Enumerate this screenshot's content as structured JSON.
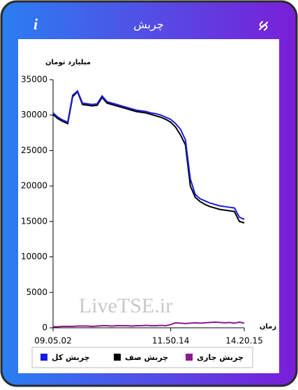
{
  "header": {
    "title": "چربش",
    "info": "i"
  },
  "chart_data": {
    "type": "line",
    "y_label": "میلیارد تومان",
    "x_label": "زمان",
    "watermark": "LiveTSE.ir",
    "categories": [
      "09.05.02",
      null,
      null,
      null,
      null,
      null,
      null,
      null,
      null,
      null,
      null,
      null,
      null,
      null,
      null,
      null,
      null,
      null,
      null,
      null,
      null,
      null,
      null,
      null,
      "11.50.14",
      null,
      null,
      null,
      null,
      null,
      null,
      null,
      null,
      null,
      null,
      null,
      null,
      null,
      null,
      "14.20.15"
    ],
    "series": [
      {
        "name": "چربش کل",
        "color": "#1a1adf",
        "values": [
          30300,
          29700,
          29300,
          29000,
          32800,
          33400,
          31700,
          31600,
          31500,
          31600,
          32700,
          31900,
          31700,
          31500,
          31300,
          31100,
          30900,
          30700,
          30600,
          30500,
          30300,
          30200,
          30000,
          29700,
          29400,
          28800,
          28000,
          26500,
          21000,
          18800,
          18200,
          17900,
          17600,
          17400,
          17200,
          17100,
          17000,
          16900,
          15600,
          15300
        ]
      },
      {
        "name": "چربش صف",
        "color": "#000000",
        "values": [
          30100,
          29500,
          29100,
          28800,
          32600,
          33300,
          31500,
          31400,
          31300,
          31400,
          32500,
          31700,
          31500,
          31300,
          31100,
          30900,
          30700,
          30500,
          30400,
          30300,
          30100,
          29900,
          29700,
          29400,
          29000,
          28300,
          27200,
          25800,
          20000,
          18400,
          17800,
          17400,
          17100,
          16900,
          16700,
          16600,
          16500,
          16400,
          15000,
          14800
        ]
      },
      {
        "name": "چربش جاری",
        "color": "#8b1a8b",
        "values": [
          150,
          150,
          200,
          200,
          200,
          250,
          250,
          250,
          200,
          250,
          300,
          300,
          250,
          300,
          300,
          300,
          250,
          300,
          300,
          350,
          300,
          300,
          350,
          300,
          450,
          700,
          650,
          600,
          650,
          700,
          650,
          700,
          750,
          800,
          750,
          700,
          750,
          650,
          800,
          650
        ]
      }
    ],
    "ylim": [
      0,
      35000
    ],
    "yticks": [
      0,
      5000,
      10000,
      15000,
      20000,
      25000,
      30000,
      35000
    ],
    "grid": false
  }
}
